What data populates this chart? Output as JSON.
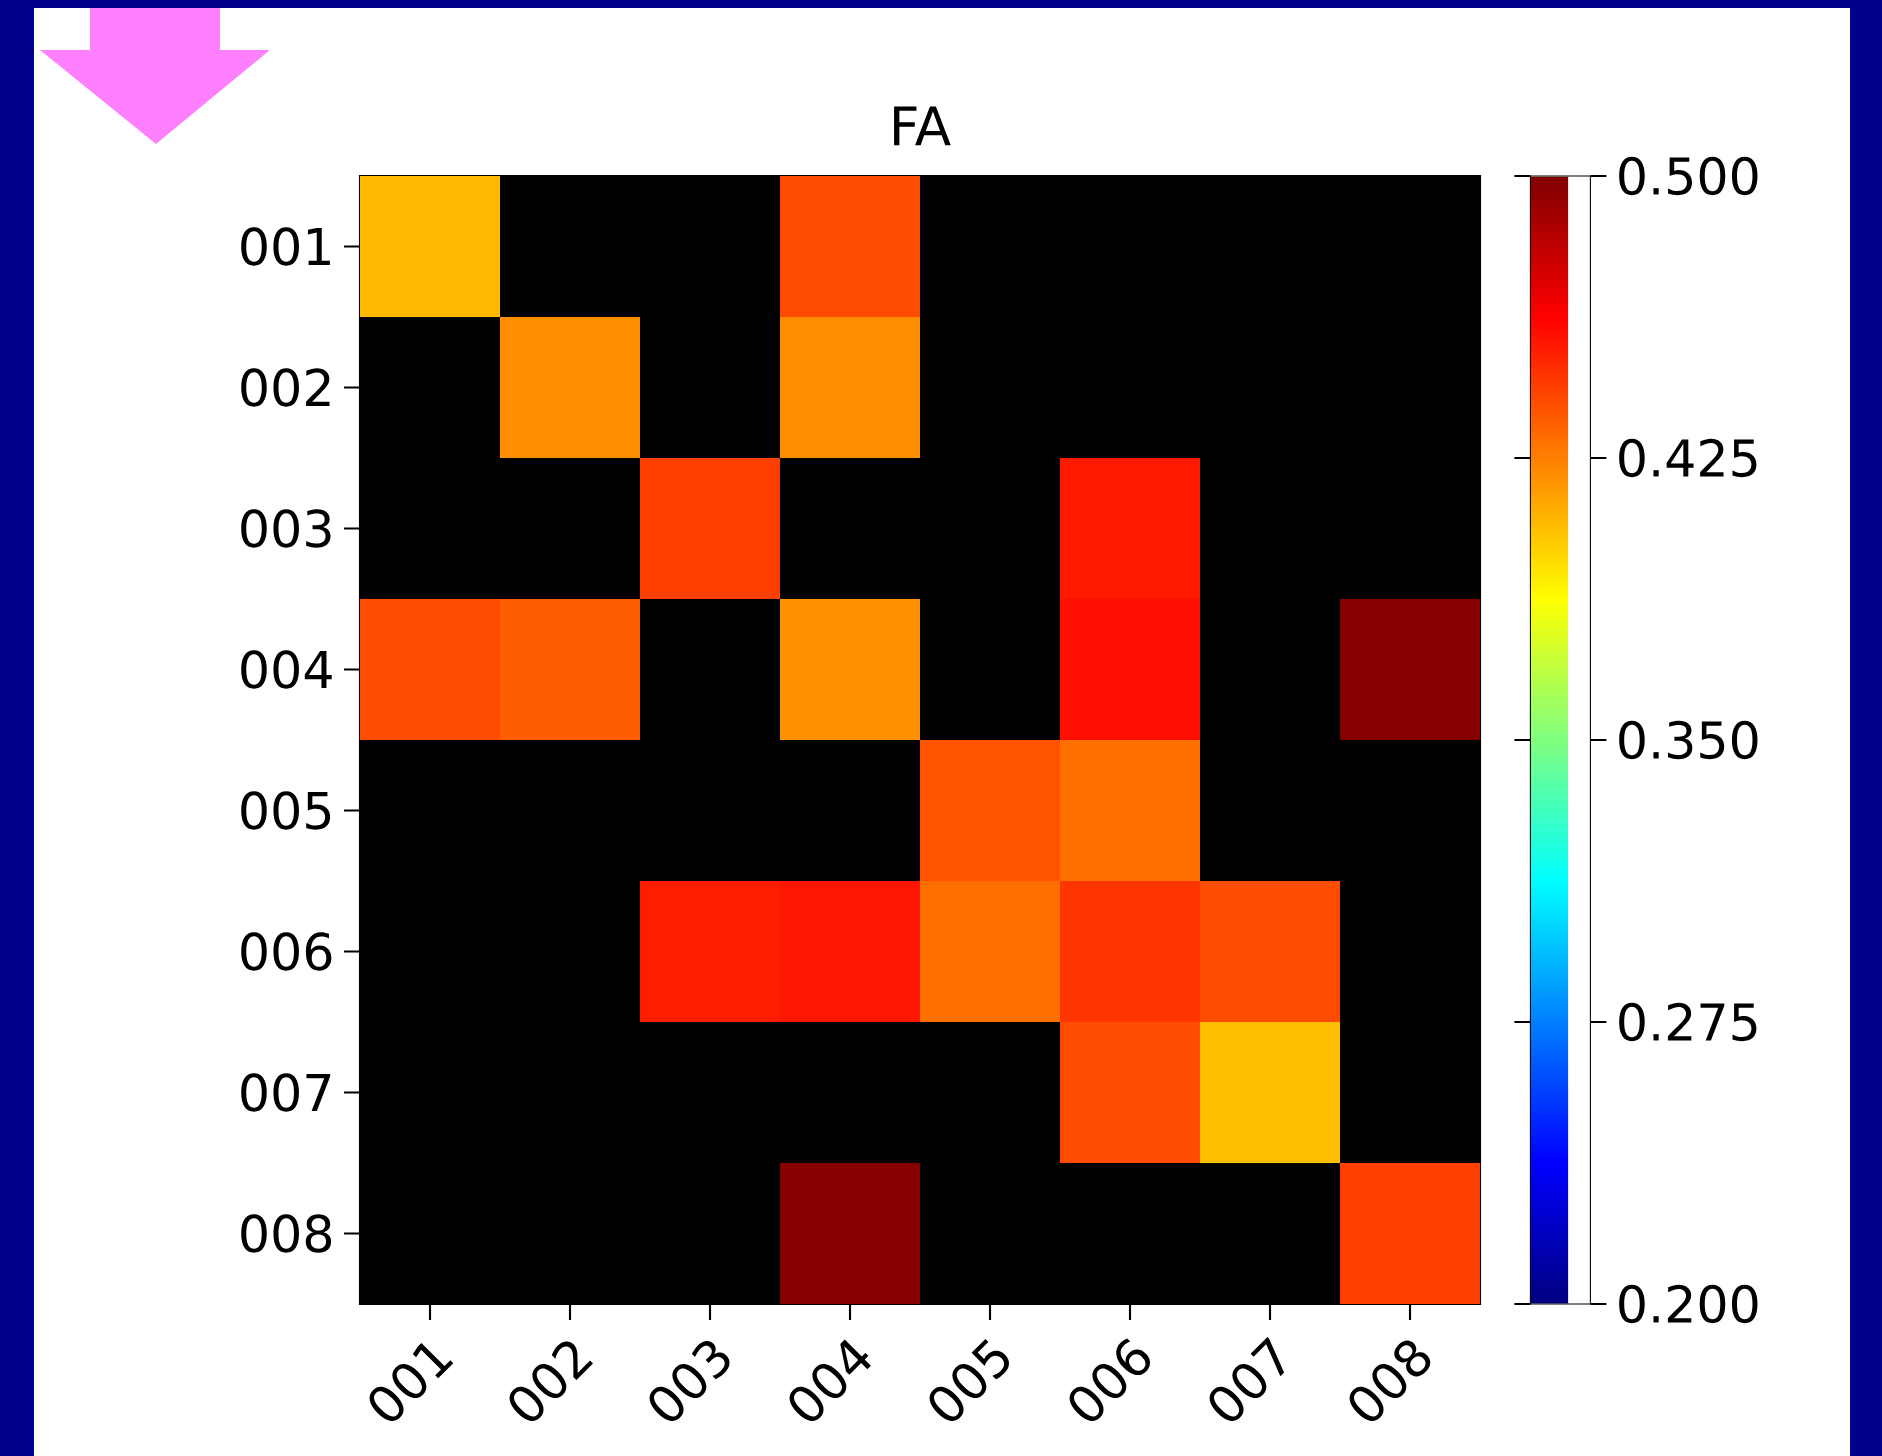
{
  "chart_data": {
    "type": "heatmap",
    "title": "FA",
    "categories": [
      "001",
      "002",
      "003",
      "004",
      "005",
      "006",
      "007",
      "008"
    ],
    "y_categories": [
      "001",
      "002",
      "003",
      "004",
      "005",
      "006",
      "007",
      "008"
    ],
    "cells": [
      [
        0.408,
        null,
        null,
        0.44,
        null,
        null,
        null,
        null
      ],
      [
        null,
        0.421,
        null,
        0.421,
        null,
        null,
        null,
        null
      ],
      [
        null,
        null,
        0.444,
        null,
        null,
        0.455,
        null,
        null
      ],
      [
        0.44,
        0.435,
        null,
        0.42,
        null,
        0.458,
        null,
        0.498
      ],
      [
        null,
        null,
        null,
        null,
        0.438,
        0.43,
        null,
        null
      ],
      [
        null,
        null,
        0.454,
        0.456,
        0.43,
        0.447,
        0.44,
        null
      ],
      [
        null,
        null,
        null,
        null,
        null,
        0.44,
        0.407,
        null
      ],
      [
        null,
        null,
        null,
        0.498,
        null,
        null,
        null,
        0.444
      ]
    ],
    "clim": [
      0.2,
      0.5
    ],
    "cticks": [
      {
        "value": 0.2,
        "label": "0.200"
      },
      {
        "value": 0.275,
        "label": "0.275"
      },
      {
        "value": 0.35,
        "label": "0.350"
      },
      {
        "value": 0.425,
        "label": "0.425"
      },
      {
        "value": 0.5,
        "label": "0.500"
      }
    ]
  }
}
